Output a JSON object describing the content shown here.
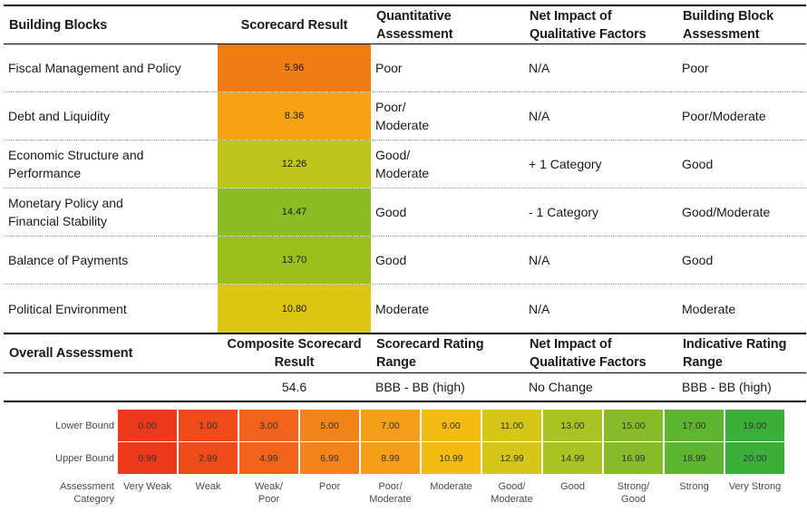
{
  "header": {
    "col1": "Building Blocks",
    "col2": "Scorecard Result",
    "col3_line1": "Quantitative",
    "col3_line2": "Assessment",
    "col4_line1": "Net Impact of",
    "col4_line2": "Qualitative Factors",
    "col5_line1": "Building Block",
    "col5_line2": "Assessment"
  },
  "rows": [
    {
      "block": "Fiscal Management and Policy",
      "block2": "",
      "score": "5.96",
      "color": "#f07d14",
      "quant": "Poor",
      "quant2": "",
      "impact": "N/A",
      "assess": "Poor"
    },
    {
      "block": "Debt and Liquidity",
      "block2": "",
      "score": "8.36",
      "color": "#f6a313",
      "quant": "Poor/",
      "quant2": "Moderate",
      "impact": "N/A",
      "assess": "Poor/Moderate"
    },
    {
      "block": "Economic Structure and Performance",
      "block2": "",
      "score": "12.26",
      "color": "#bdc51a",
      "quant": "Good/",
      "quant2": "Moderate",
      "impact": "+ 1 Category",
      "assess": "Good"
    },
    {
      "block": "Monetary Policy and",
      "block2": "Financial Stability",
      "score": "14.47",
      "color": "#8cbd24",
      "quant": "Good",
      "quant2": "",
      "impact": "- 1 Category",
      "assess": "Good/Moderate"
    },
    {
      "block": "Balance of Payments",
      "block2": "",
      "score": "13.70",
      "color": "#9dbf1e",
      "quant": "Good",
      "quant2": "",
      "impact": "N/A",
      "assess": "Good"
    },
    {
      "block": "Political Environment",
      "block2": "",
      "score": "10.80",
      "color": "#dcc613",
      "quant": "Moderate",
      "quant2": "",
      "impact": "N/A",
      "assess": "Moderate"
    }
  ],
  "overall": {
    "label": "Overall Assessment",
    "col2_line1": "Composite Scorecard",
    "col2_line2": "Result",
    "col3_line1": "Scorecard Rating",
    "col3_line2": "Range",
    "col4_line1": "Net Impact of",
    "col4_line2": "Qualitative Factors",
    "col5_line1": "Indicative Rating",
    "col5_line2": "Range",
    "composite": "54.6",
    "rating_range": "BBB - BB (high)",
    "impact": "No Change",
    "indicative": "BBB - BB (high)"
  },
  "scale": {
    "lower_label": "Lower Bound",
    "upper_label": "Upper Bound",
    "category_label_1": "Assessment",
    "category_label_2": "Category",
    "bands": [
      {
        "lower": "0.00",
        "upper": "0.99",
        "cat1": "Very Weak",
        "cat2": "",
        "color": "#ee3a1c"
      },
      {
        "lower": "1.00",
        "upper": "2.99",
        "cat1": "Weak",
        "cat2": "",
        "color": "#ef4a1a"
      },
      {
        "lower": "3.00",
        "upper": "4.99",
        "cat1": "Weak/",
        "cat2": "Poor",
        "color": "#f1621a"
      },
      {
        "lower": "5.00",
        "upper": "6.99",
        "cat1": "Poor",
        "cat2": "",
        "color": "#f3841a"
      },
      {
        "lower": "7.00",
        "upper": "8.99",
        "cat1": "Poor/",
        "cat2": "Moderate",
        "color": "#f59e1a"
      },
      {
        "lower": "9.00",
        "upper": "10.99",
        "cat1": "Moderate",
        "cat2": "",
        "color": "#f4bb12"
      },
      {
        "lower": "11.00",
        "upper": "12.99",
        "cat1": "Good/",
        "cat2": "Moderate",
        "color": "#d6c619"
      },
      {
        "lower": "13.00",
        "upper": "14.99",
        "cat1": "Good",
        "cat2": "",
        "color": "#a8c322"
      },
      {
        "lower": "15.00",
        "upper": "16.99",
        "cat1": "Strong/",
        "cat2": "Good",
        "color": "#87bb2a"
      },
      {
        "lower": "17.00",
        "upper": "18.99",
        "cat1": "Strong",
        "cat2": "",
        "color": "#5db531"
      },
      {
        "lower": "19.00",
        "upper": "20.00",
        "cat1": "Very Strong",
        "cat2": "",
        "color": "#3eae3b"
      }
    ]
  }
}
